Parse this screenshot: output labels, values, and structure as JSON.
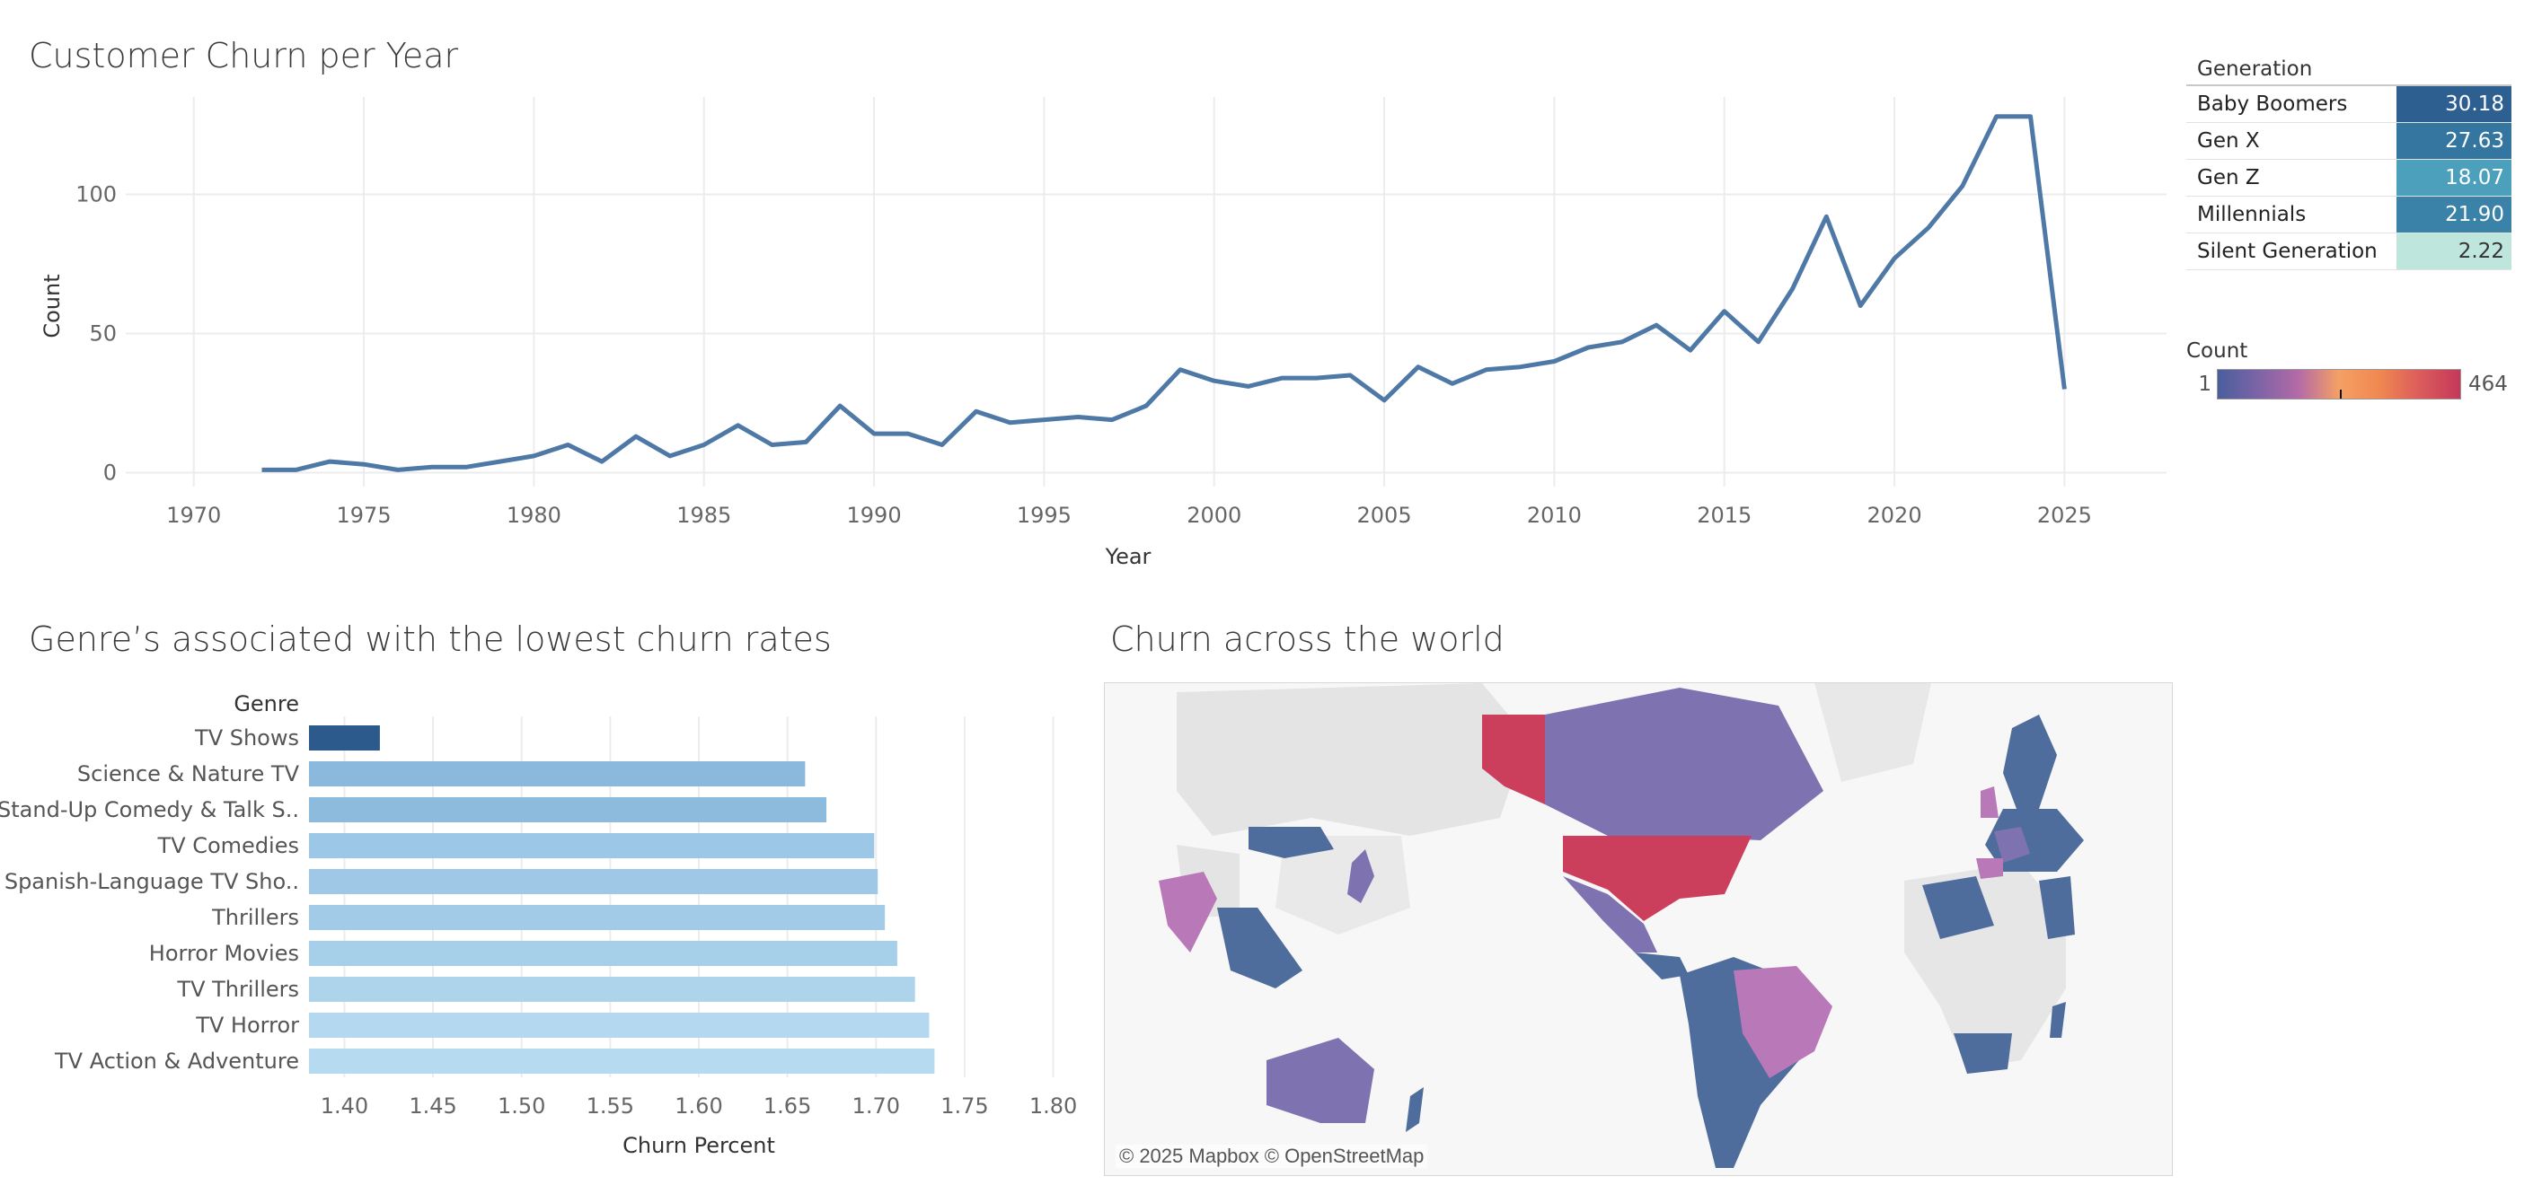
{
  "titles": {
    "churn_per_year": "Customer Churn per Year",
    "genres": "Genre’s associated with the lowest churn rates",
    "world": "Churn across the world"
  },
  "chart_data": [
    {
      "type": "line",
      "title": "Customer Churn per Year",
      "xlabel": "Year",
      "ylabel": "Count",
      "xlim": [
        1968,
        2028
      ],
      "ylim": [
        -5,
        135
      ],
      "xticks": [
        1970,
        1975,
        1980,
        1985,
        1990,
        1995,
        2000,
        2005,
        2010,
        2015,
        2020,
        2025
      ],
      "yticks": [
        0,
        50,
        100
      ],
      "grid": true,
      "color": "#4e79a7",
      "x": [
        1972,
        1973,
        1974,
        1975,
        1976,
        1977,
        1978,
        1979,
        1980,
        1981,
        1982,
        1983,
        1984,
        1985,
        1986,
        1987,
        1988,
        1989,
        1990,
        1991,
        1992,
        1993,
        1994,
        1995,
        1996,
        1997,
        1998,
        1999,
        2000,
        2001,
        2002,
        2003,
        2004,
        2005,
        2006,
        2007,
        2008,
        2009,
        2010,
        2011,
        2012,
        2013,
        2014,
        2015,
        2016,
        2017,
        2018,
        2019,
        2020,
        2021,
        2022,
        2023,
        2024,
        2025
      ],
      "y": [
        1,
        1,
        4,
        3,
        1,
        2,
        2,
        4,
        6,
        10,
        4,
        13,
        6,
        10,
        17,
        10,
        11,
        24,
        14,
        14,
        10,
        22,
        18,
        19,
        20,
        19,
        24,
        37,
        33,
        31,
        34,
        34,
        35,
        26,
        38,
        32,
        37,
        38,
        40,
        45,
        47,
        53,
        44,
        58,
        47,
        66,
        92,
        60,
        77,
        88,
        103,
        128,
        128,
        30
      ]
    },
    {
      "type": "bar",
      "orientation": "horizontal",
      "title": "Genre’s associated with the lowest churn rates",
      "xlabel": "Churn Percent",
      "ylabel": "Genre",
      "xlim": [
        1.38,
        1.82
      ],
      "xticks": [
        "1.40",
        "1.45",
        "1.50",
        "1.55",
        "1.60",
        "1.65",
        "1.70",
        "1.75",
        "1.80"
      ],
      "grid": true,
      "categories": [
        "TV Shows",
        "Science & Nature TV",
        "Stand-Up Comedy & Talk S..",
        "TV Comedies",
        "Spanish-Language TV Sho..",
        "Thrillers",
        "Horror Movies",
        "TV Thrillers",
        "TV Horror",
        "TV Action & Adventure"
      ],
      "values": [
        1.42,
        1.66,
        1.672,
        1.699,
        1.701,
        1.705,
        1.712,
        1.722,
        1.73,
        1.733
      ],
      "colors": [
        "#2c5a8c",
        "#8ab9dd",
        "#8dbbde",
        "#9dc7e6",
        "#9ec8e6",
        "#a1cbe7",
        "#a6cfea",
        "#aed4ec",
        "#b3d8ef",
        "#b6daf0"
      ]
    },
    {
      "type": "table",
      "title": "Generation",
      "categories": [
        "Baby Boomers",
        "Gen X",
        "Gen Z",
        "Millennials",
        "Silent Generation"
      ],
      "values": [
        "30.18",
        "27.63",
        "18.07",
        "21.90",
        "2.22"
      ],
      "colors": [
        "#2d5f91",
        "#3476a0",
        "#4ca0bb",
        "#3a82a8",
        "#bfe6dc"
      ]
    }
  ],
  "legend_count": {
    "title": "Count",
    "min": "1",
    "max": "464"
  },
  "map": {
    "attribution": "© 2025 Mapbox © OpenStreetMap",
    "colors": {
      "land": "#e6e6e6",
      "low": "#4e6c9c",
      "mid": "#7f72b0",
      "pink": "#b978b8",
      "high": "#cc3f5c"
    }
  }
}
